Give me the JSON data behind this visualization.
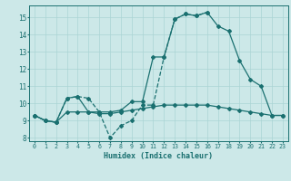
{
  "xlabel": "Humidex (Indice chaleur)",
  "xlim": [
    -0.5,
    23.5
  ],
  "ylim": [
    7.8,
    15.7
  ],
  "yticks": [
    8,
    9,
    10,
    11,
    12,
    13,
    14,
    15
  ],
  "xticks": [
    0,
    1,
    2,
    3,
    4,
    5,
    6,
    7,
    8,
    9,
    10,
    11,
    12,
    13,
    14,
    15,
    16,
    17,
    18,
    19,
    20,
    21,
    22,
    23
  ],
  "bg_color": "#cce8e8",
  "grid_color": "#aad4d4",
  "line_color": "#1a7070",
  "line1_x": [
    0,
    1,
    2,
    3,
    4,
    5,
    6,
    7,
    8,
    9,
    10,
    11,
    12,
    13,
    14,
    15,
    16
  ],
  "line1_y": [
    9.3,
    9.0,
    8.9,
    10.3,
    10.4,
    10.3,
    9.5,
    8.0,
    8.7,
    9.0,
    9.9,
    9.9,
    12.7,
    14.9,
    15.2,
    15.1,
    15.3
  ],
  "line1_style": "--",
  "line2_x": [
    0,
    1,
    2,
    3,
    4,
    5,
    6,
    7,
    8,
    9,
    10,
    11,
    12,
    13,
    14,
    15,
    16,
    17,
    18,
    19,
    20,
    21,
    22,
    23
  ],
  "line2_y": [
    9.3,
    9.0,
    8.9,
    9.5,
    9.5,
    9.5,
    9.4,
    9.4,
    9.5,
    9.6,
    9.7,
    9.8,
    9.9,
    9.9,
    9.9,
    9.9,
    9.9,
    9.8,
    9.7,
    9.6,
    9.5,
    9.4,
    9.3,
    9.3
  ],
  "line2_style": "-",
  "line3_x": [
    0,
    1,
    2,
    3,
    4,
    5,
    6,
    7,
    8,
    9,
    10,
    11,
    12,
    13,
    14,
    15,
    16,
    17,
    18,
    19,
    20,
    21,
    22,
    23
  ],
  "line3_y": [
    9.3,
    9.0,
    8.9,
    10.3,
    10.4,
    9.5,
    9.5,
    9.5,
    9.6,
    10.1,
    10.1,
    12.7,
    12.7,
    14.9,
    15.2,
    15.1,
    15.3,
    14.5,
    14.2,
    12.5,
    11.4,
    11.0,
    9.3,
    9.3
  ],
  "line3_style": "-"
}
